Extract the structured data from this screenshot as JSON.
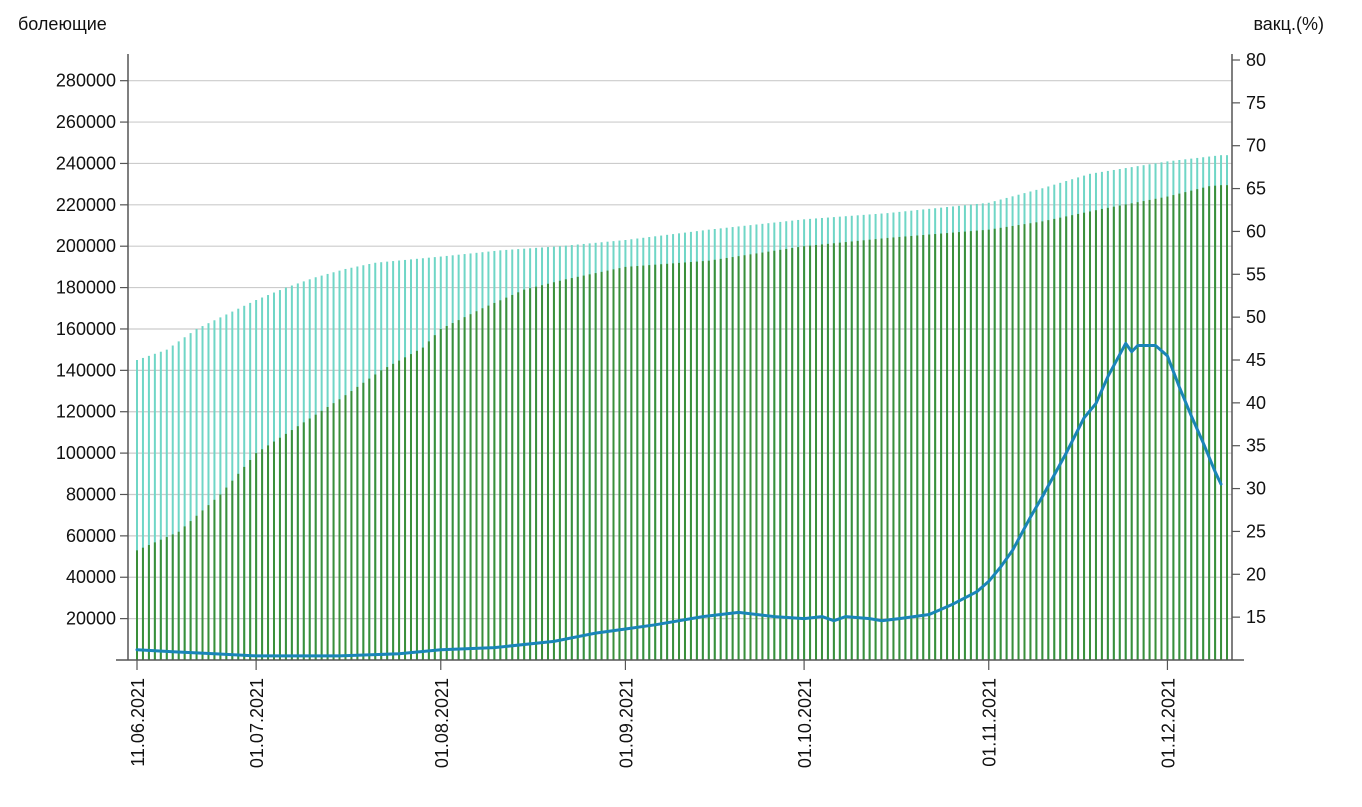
{
  "chart_data": {
    "type": "bar+line",
    "title": "",
    "ylabel_left": "болеющие",
    "ylabel_right": "вакц.(%)",
    "ylim_left": [
      0,
      290000
    ],
    "ylim_right": [
      10,
      80
    ],
    "yticks_left": [
      20000,
      40000,
      60000,
      80000,
      100000,
      120000,
      140000,
      160000,
      180000,
      200000,
      220000,
      240000,
      260000,
      280000
    ],
    "yticks_right": [
      15,
      20,
      25,
      30,
      35,
      40,
      45,
      50,
      55,
      60,
      65,
      70,
      75,
      80
    ],
    "x_start": "2021-06-11",
    "x_end": "2021-12-11",
    "xticks": [
      "11.06.2021",
      "01.07.2021",
      "01.08.2021",
      "01.09.2021",
      "01.10.2021",
      "01.11.2021",
      "01.12.2021"
    ],
    "grid": "horizontal",
    "colors": {
      "green_bars": "#3a8f3a",
      "cyan_bars": "#6fd6c6",
      "line": "#1a85b8",
      "axis": "#555555",
      "grid": "#cccccc"
    },
    "series": [
      {
        "kind": "bar",
        "axis": "left",
        "color": "green",
        "points": [
          [
            "2021-06-11",
            53000
          ],
          [
            "2021-06-18",
            62000
          ],
          [
            "2021-06-25",
            80000
          ],
          [
            "2021-07-01",
            100000
          ],
          [
            "2021-07-08",
            113000
          ],
          [
            "2021-07-15",
            126000
          ],
          [
            "2021-07-22",
            140000
          ],
          [
            "2021-07-29",
            151000
          ],
          [
            "2021-08-01",
            160000
          ],
          [
            "2021-08-08",
            170000
          ],
          [
            "2021-08-15",
            179000
          ],
          [
            "2021-08-22",
            184000
          ],
          [
            "2021-09-01",
            190000
          ],
          [
            "2021-09-15",
            193000
          ],
          [
            "2021-10-01",
            200000
          ],
          [
            "2021-10-15",
            204000
          ],
          [
            "2021-11-01",
            208000
          ],
          [
            "2021-11-10",
            212000
          ],
          [
            "2021-11-20",
            218000
          ],
          [
            "2021-12-01",
            224000
          ],
          [
            "2021-12-08",
            229000
          ],
          [
            "2021-12-10",
            229500
          ]
        ]
      },
      {
        "kind": "bar",
        "axis": "left",
        "color": "cyan",
        "points": [
          [
            "2021-06-11",
            145000
          ],
          [
            "2021-06-16",
            150000
          ],
          [
            "2021-06-21",
            160000
          ],
          [
            "2021-06-26",
            167000
          ],
          [
            "2021-07-01",
            174000
          ],
          [
            "2021-07-06",
            180000
          ],
          [
            "2021-07-11",
            185000
          ],
          [
            "2021-07-16",
            189000
          ],
          [
            "2021-07-21",
            192000
          ],
          [
            "2021-08-01",
            195000
          ],
          [
            "2021-08-11",
            198000
          ],
          [
            "2021-08-21",
            200000
          ],
          [
            "2021-09-01",
            203000
          ],
          [
            "2021-09-15",
            208000
          ],
          [
            "2021-10-01",
            213000
          ],
          [
            "2021-10-15",
            216000
          ],
          [
            "2021-11-01",
            221000
          ],
          [
            "2021-11-10",
            228000
          ],
          [
            "2021-11-18",
            235000
          ],
          [
            "2021-12-01",
            241000
          ],
          [
            "2021-12-10",
            244000
          ]
        ]
      },
      {
        "kind": "line",
        "axis": "left",
        "color": "blue",
        "points": [
          [
            "2021-06-11",
            5000
          ],
          [
            "2021-06-17",
            4000
          ],
          [
            "2021-06-24",
            3000
          ],
          [
            "2021-07-01",
            2000
          ],
          [
            "2021-07-15",
            2000
          ],
          [
            "2021-07-25",
            3000
          ],
          [
            "2021-08-01",
            5000
          ],
          [
            "2021-08-10",
            6000
          ],
          [
            "2021-08-20",
            9000
          ],
          [
            "2021-08-27",
            13000
          ],
          [
            "2021-09-01",
            15000
          ],
          [
            "2021-09-06",
            17000
          ],
          [
            "2021-09-14",
            21000
          ],
          [
            "2021-09-20",
            23000
          ],
          [
            "2021-09-26",
            21000
          ],
          [
            "2021-10-01",
            20000
          ],
          [
            "2021-10-04",
            21000
          ],
          [
            "2021-10-06",
            19000
          ],
          [
            "2021-10-08",
            21000
          ],
          [
            "2021-10-12",
            20000
          ],
          [
            "2021-10-14",
            19000
          ],
          [
            "2021-10-17",
            20000
          ],
          [
            "2021-10-22",
            22000
          ],
          [
            "2021-10-26",
            27000
          ],
          [
            "2021-10-30",
            33000
          ],
          [
            "2021-11-01",
            38000
          ],
          [
            "2021-11-03",
            45000
          ],
          [
            "2021-11-05",
            53000
          ],
          [
            "2021-11-08",
            69000
          ],
          [
            "2021-11-10",
            79000
          ],
          [
            "2021-11-14",
            100000
          ],
          [
            "2021-11-17",
            117000
          ],
          [
            "2021-11-19",
            124000
          ],
          [
            "2021-11-21",
            137000
          ],
          [
            "2021-11-24",
            153000
          ],
          [
            "2021-11-25",
            149000
          ],
          [
            "2021-11-26",
            152000
          ],
          [
            "2021-11-29",
            152000
          ],
          [
            "2021-12-01",
            147000
          ],
          [
            "2021-12-03",
            132000
          ],
          [
            "2021-12-05",
            118000
          ],
          [
            "2021-12-07",
            105000
          ],
          [
            "2021-12-09",
            91000
          ],
          [
            "2021-12-10",
            85000
          ]
        ]
      }
    ]
  }
}
